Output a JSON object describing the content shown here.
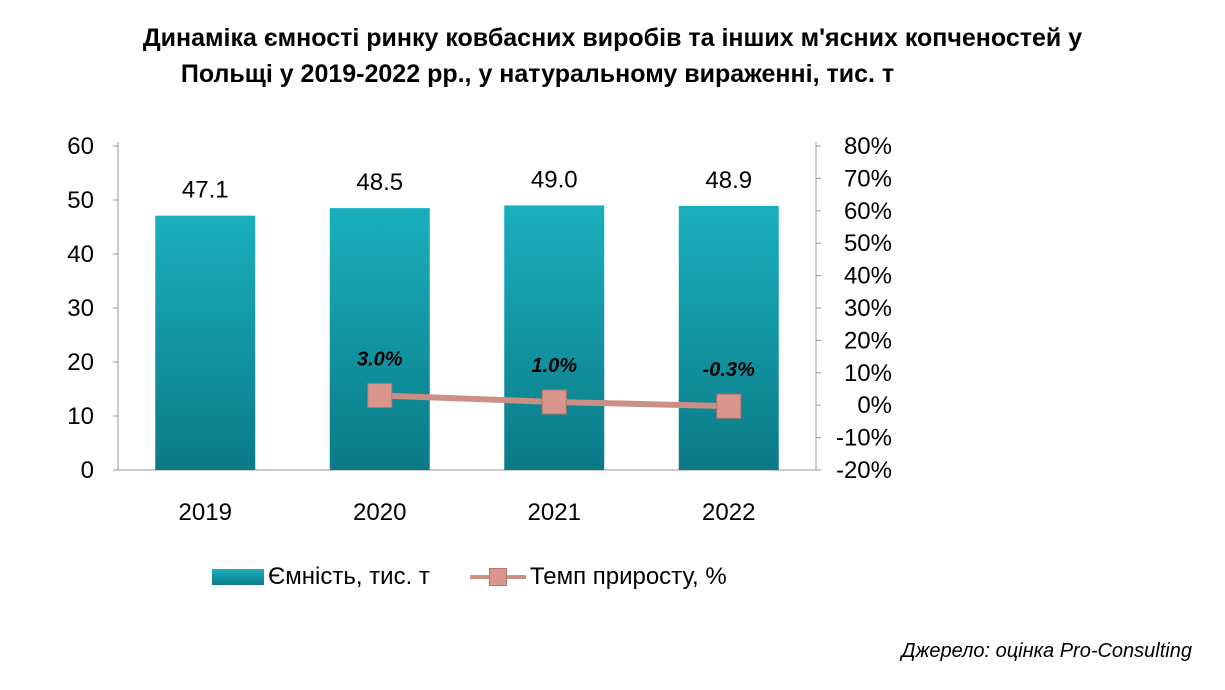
{
  "title_line1": "Динаміка ємності ринку ковбасних виробів та інших м'ясних копченостей у",
  "title_line2": "Польщі у 2019-2022 рр., у натуральному вираженні, тис. т",
  "source": "Джерело: оцінка Pro-Consulting",
  "chart_data": {
    "type": "bar",
    "categories": [
      "2019",
      "2020",
      "2021",
      "2022"
    ],
    "series": [
      {
        "name": "Ємність, тис. т",
        "type": "bar",
        "axis": "left",
        "values": [
          47.1,
          48.5,
          49.0,
          48.9
        ],
        "labels": [
          "47.1",
          "48.5",
          "49.0",
          "48.9"
        ],
        "color": "#13a3b1"
      },
      {
        "name": "Темп приросту, %",
        "type": "line",
        "axis": "right",
        "values": [
          null,
          3.0,
          1.0,
          -0.3
        ],
        "labels": [
          "",
          "3.0%",
          "1.0%",
          "-0.3%"
        ],
        "color": "#cc8f86"
      }
    ],
    "y_left": {
      "min": 0,
      "max": 60,
      "step": 10,
      "tick_labels": [
        "0",
        "10",
        "20",
        "30",
        "40",
        "50",
        "60"
      ]
    },
    "y_right": {
      "min": -20,
      "max": 80,
      "step": 10,
      "tick_labels": [
        "-20%",
        "-10%",
        "0%",
        "10%",
        "20%",
        "30%",
        "40%",
        "50%",
        "60%",
        "70%",
        "80%"
      ]
    },
    "grid": false,
    "legend_position": "bottom"
  }
}
